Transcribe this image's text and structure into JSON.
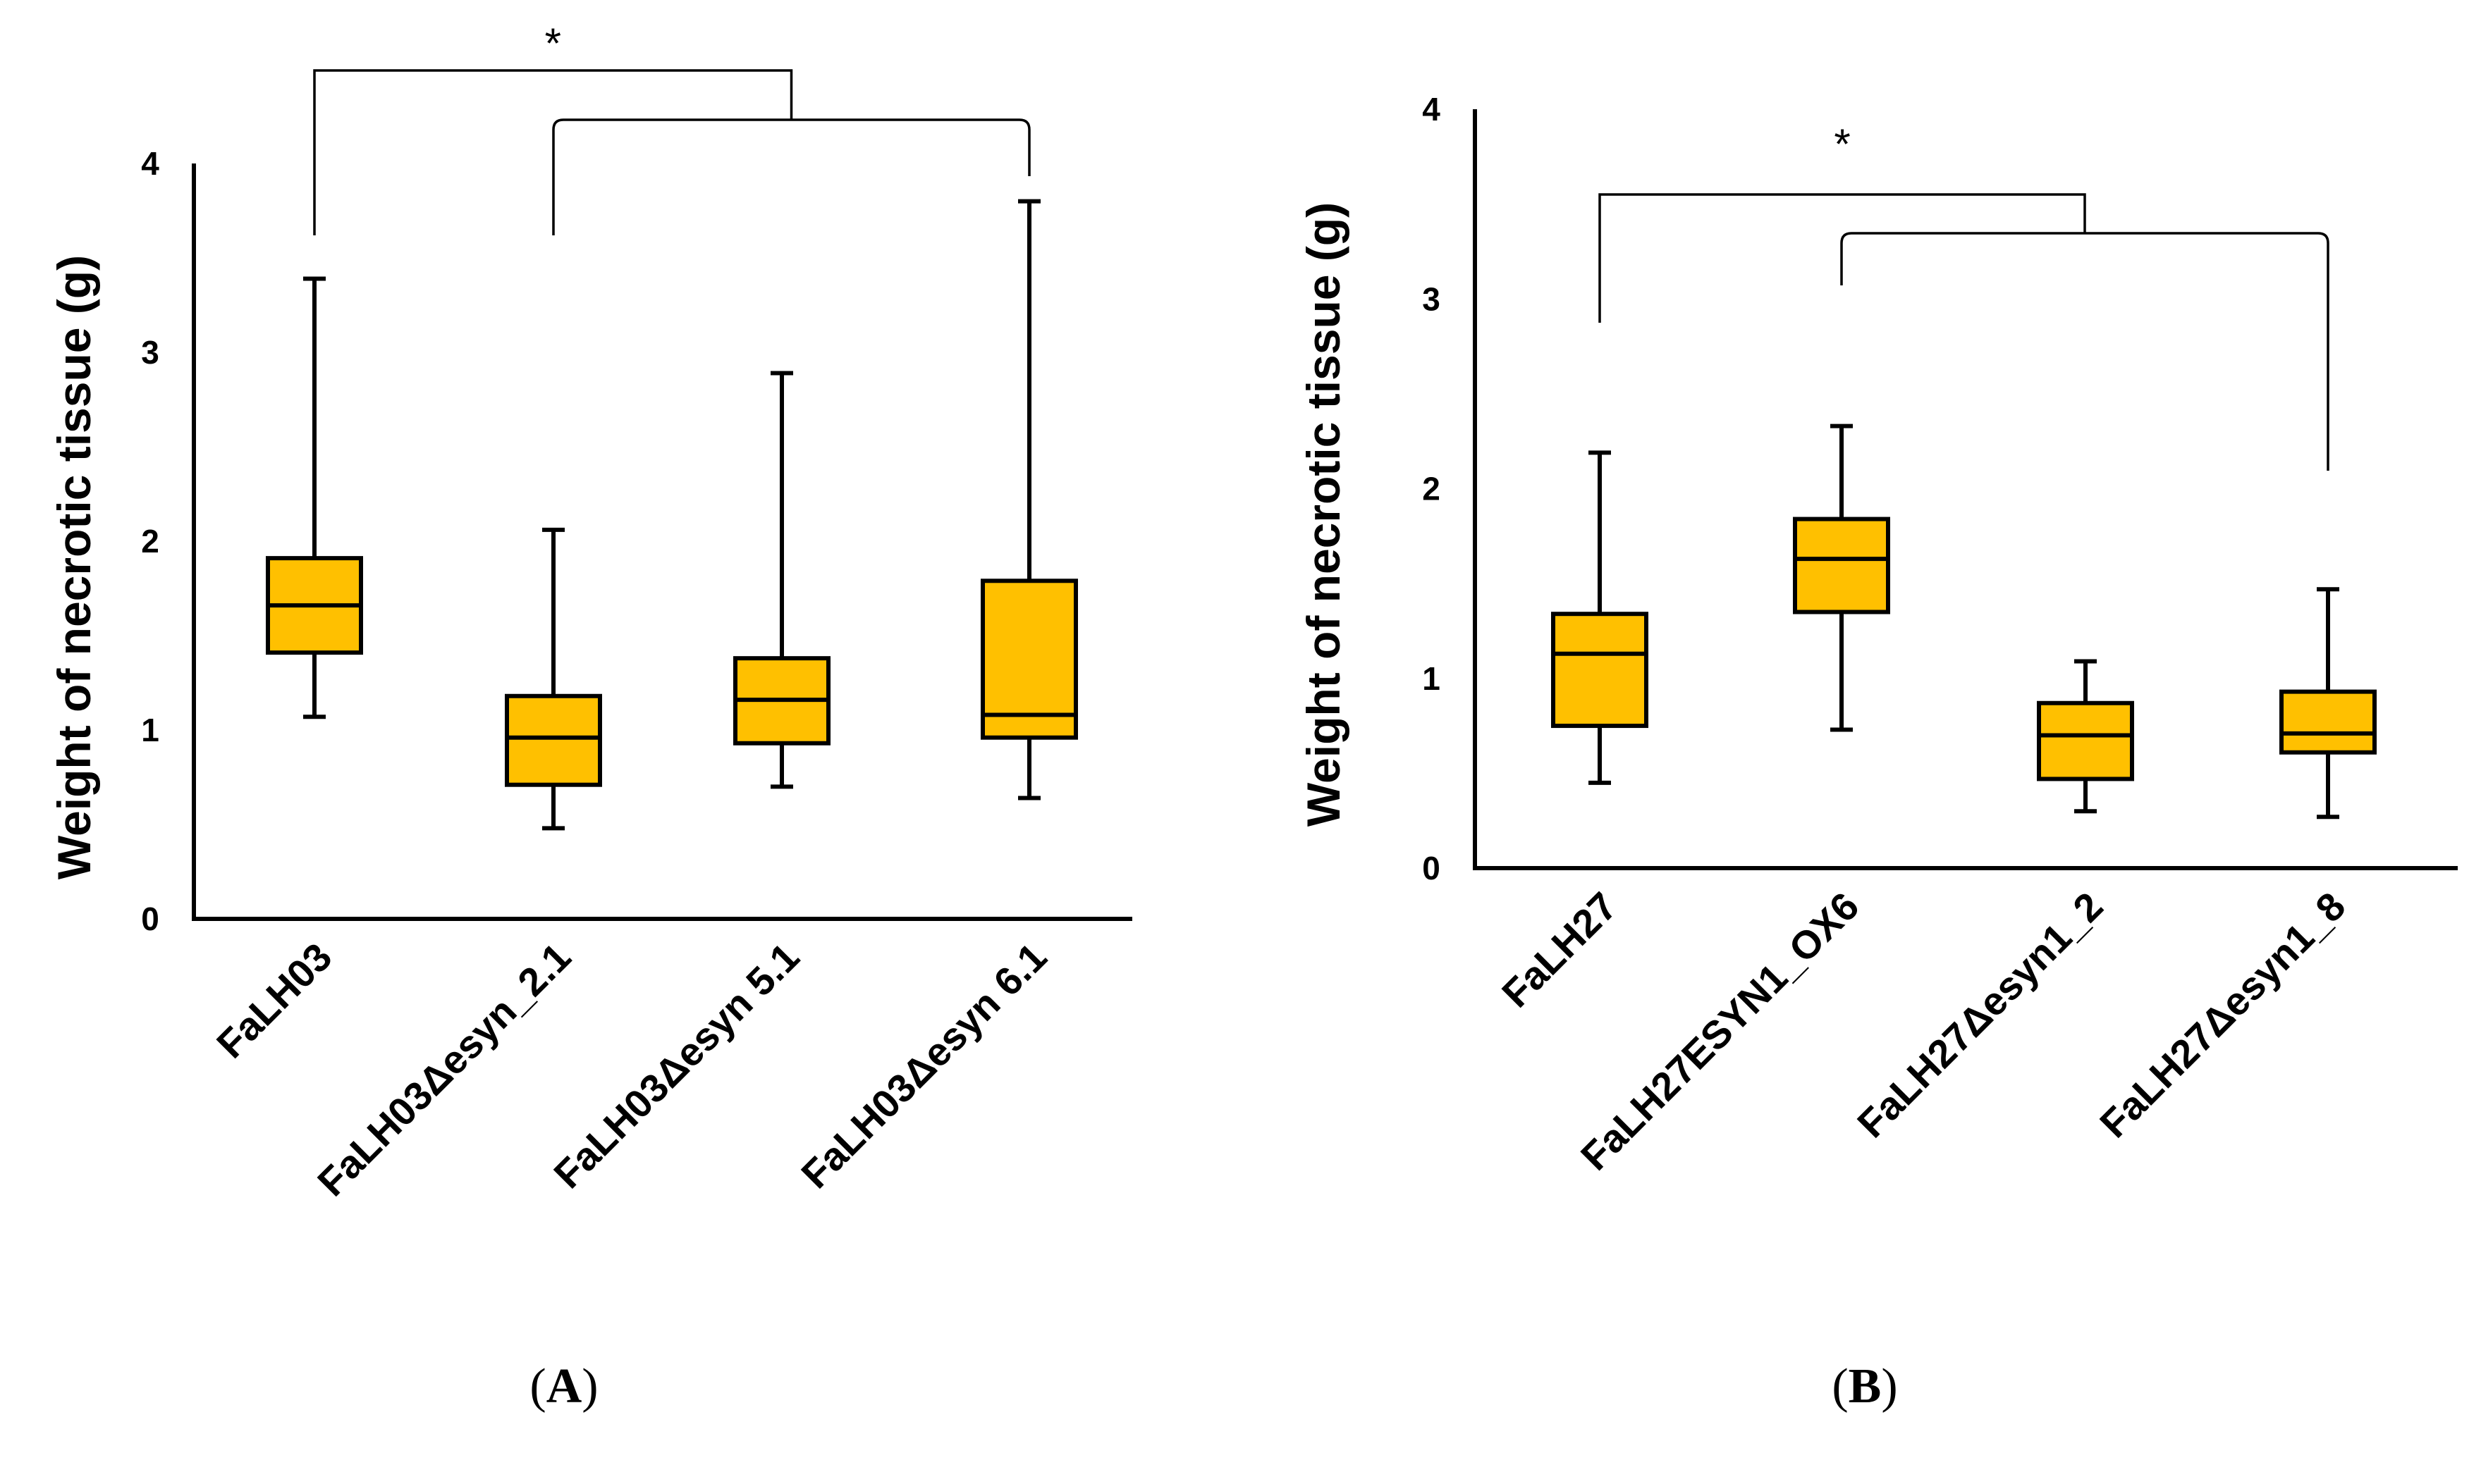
{
  "chart_data": [
    {
      "panel": "A",
      "type": "boxplot",
      "ylabel": "Weight of necrotic tissue (g)",
      "ylim": [
        0,
        4
      ],
      "yticks": [
        "0",
        "1",
        "2",
        "3",
        "4"
      ],
      "categories": [
        "FaLH03",
        "FaLH03Δesyn_2.1",
        "FaLH03Δesyn 5.1",
        "FaLH03Δesyn 6.1"
      ],
      "boxes": [
        {
          "min": 1.07,
          "q1": 1.41,
          "median": 1.66,
          "q3": 1.91,
          "max": 3.39
        },
        {
          "min": 0.48,
          "q1": 0.71,
          "median": 0.96,
          "q3": 1.18,
          "max": 2.06
        },
        {
          "min": 0.7,
          "q1": 0.93,
          "median": 1.16,
          "q3": 1.38,
          "max": 2.89
        },
        {
          "min": 0.64,
          "q1": 0.96,
          "median": 1.08,
          "q3": 1.79,
          "max": 3.8
        }
      ],
      "significance": {
        "label": "*",
        "from": 0,
        "to": [
          1,
          3
        ]
      }
    },
    {
      "panel": "B",
      "type": "boxplot",
      "ylabel": "Weight of necrotic tissue (g)",
      "ylim": [
        0,
        4
      ],
      "yticks": [
        "0",
        "1",
        "2",
        "3",
        "4"
      ],
      "categories": [
        "FaLH27",
        "FaLH27ESYN1_OX6",
        "FaLH27Δesyn1_2",
        "FaLH27Δesyn1_8"
      ],
      "boxes": [
        {
          "min": 0.45,
          "q1": 0.75,
          "median": 1.13,
          "q3": 1.34,
          "max": 2.19
        },
        {
          "min": 0.73,
          "q1": 1.35,
          "median": 1.63,
          "q3": 1.84,
          "max": 2.33
        },
        {
          "min": 0.3,
          "q1": 0.47,
          "median": 0.7,
          "q3": 0.87,
          "max": 1.09
        },
        {
          "min": 0.27,
          "q1": 0.61,
          "median": 0.71,
          "q3": 0.93,
          "max": 1.47
        }
      ],
      "significance": {
        "label": "*",
        "from": 0,
        "to": [
          1,
          3
        ]
      }
    }
  ],
  "panel_labels": [
    {
      "open": "(",
      "letter": "A",
      "close": ")"
    },
    {
      "open": "(",
      "letter": "B",
      "close": ")"
    }
  ]
}
